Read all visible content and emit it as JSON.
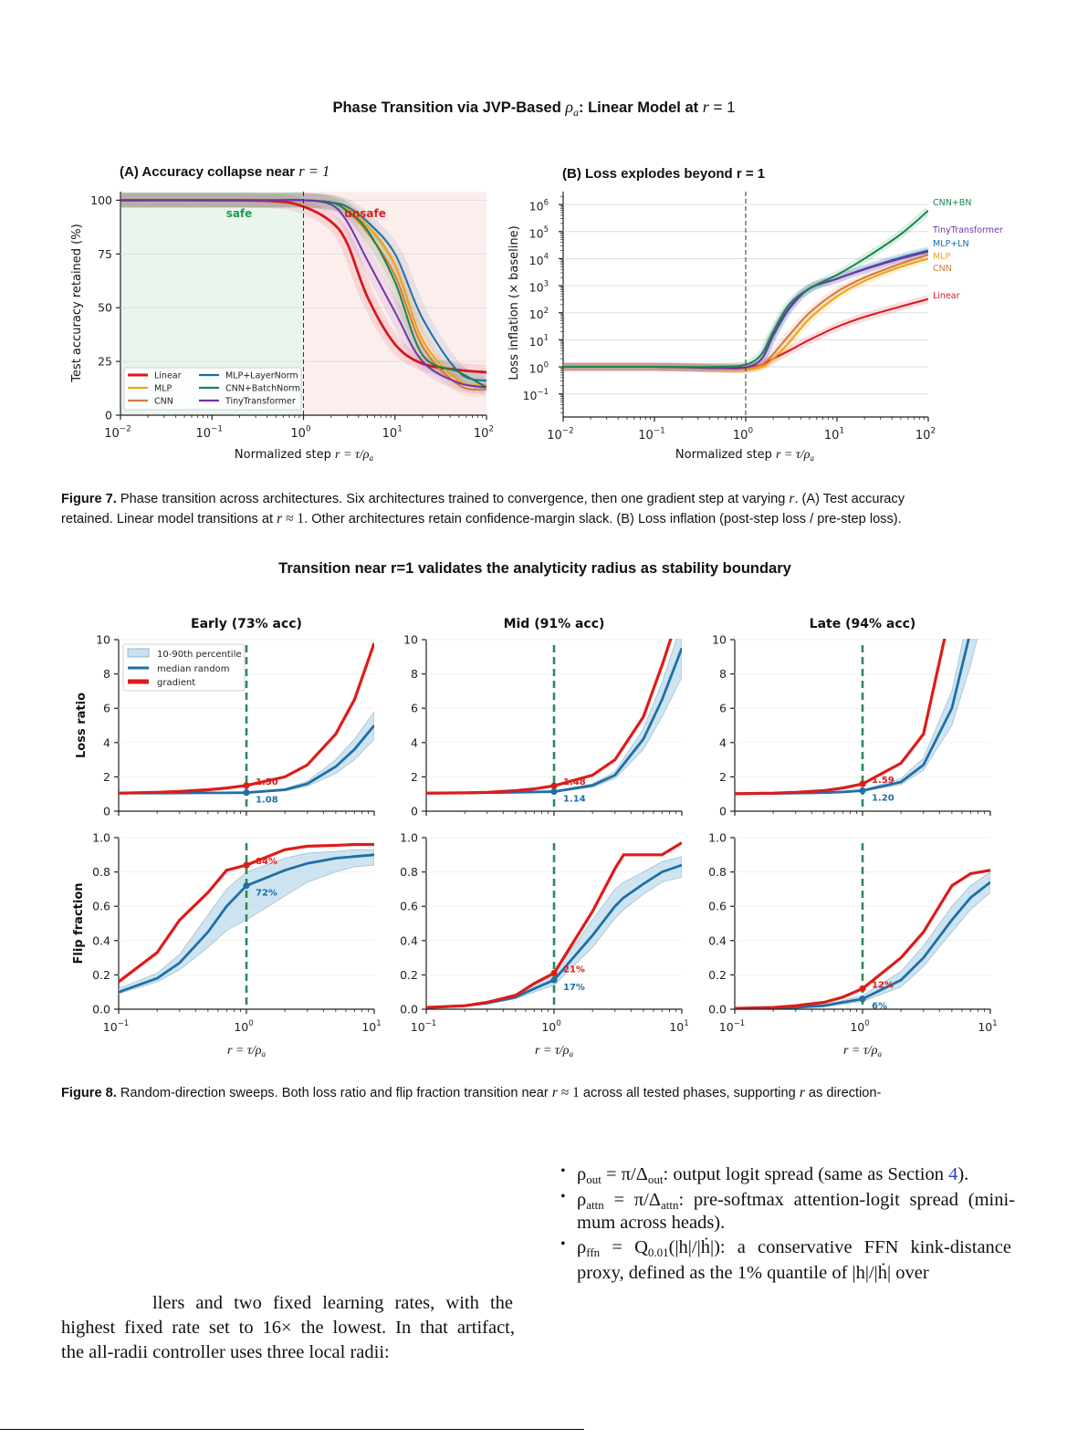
{
  "figure7": {
    "title": {
      "prefix": "Phase Transition via JVP-Based ",
      "rho": "ρ",
      "rho_sub": "a",
      "middle": ": Linear Model at ",
      "r": "r",
      "suffix": " = 1"
    },
    "caption": {
      "label": "Figure 7.",
      "line1": " Phase transition across architectures. Six architectures trained to convergence, then one gradient step at varying ",
      "line1_math": "r",
      "line1_end": ". (A) Test accuracy",
      "line2": "retained. Linear model transitions at ",
      "line2_math": "r",
      "line2_approx": " ≈ 1",
      "line2_end": ". Other architectures retain confidence-margin slack. (B) Loss inflation (post-step loss / pre-step loss)."
    }
  },
  "figure8": {
    "title": "Transition near r=1 validates the analyticity radius as stability boundary",
    "row_labels": {
      "loss": "Loss ratio",
      "flip": "Flip fraction"
    },
    "legend": {
      "band": "10-90th percentile",
      "median": "median random",
      "gradient": "gradient"
    },
    "colors": {
      "gradient": "#dd1c1a",
      "median": "#1f6fa5",
      "band": "#a6cde3",
      "boundary": "#2e8b57"
    },
    "caption": {
      "label": "Figure 8.",
      "text1": " Random-direction sweeps. Both loss ratio and flip fraction transition near ",
      "math1": "r",
      "approx": " ≈ 1",
      "text2": " across all tested phases, supporting ",
      "math2": "r",
      "text3": " as direction-"
    }
  },
  "body_text": {
    "bullets": [
      {
        "rho_sub": "out",
        "eq": " = π/Δ",
        "eq_sub": "out",
        "text": ": output logit spread (same as Section ",
        "link": "4",
        "end": ")."
      },
      {
        "rho_sub": "attn",
        "eq": " = π/Δ",
        "eq_sub": "attn",
        "text": ": pre-softmax attention-logit spread (mini-",
        "cont": "mum across heads)."
      },
      {
        "rho_sub": "ffn",
        "eq": " = Q",
        "eq_sub": "0.01",
        "arg": "(|h|/|ḣ|)",
        "text": ": a conservative FFN kink-distance",
        "cont": "proxy, defined as the 1% quantile of |h|/|ḣ| over"
      }
    ],
    "rho": "ρ",
    "bullet_char": "•",
    "left_lines": [
      "llers and two fixed learning rates, with the",
      "highest fixed rate set to 16× the lowest. In that artifact,",
      "the all-radii controller uses three local radii:"
    ]
  },
  "chart_data": [
    {
      "id": "A",
      "type": "line",
      "title": "(A) Accuracy collapse near ",
      "title_math": "r = 1",
      "xlabel": "Normalized step ",
      "xlabel_math": "r = τ/ρ",
      "xlabel_sub": "a",
      "ylabel": "Test accuracy retained (%)",
      "xscale": "log",
      "xlim": [
        0.01,
        100
      ],
      "ylim": [
        0,
        104
      ],
      "xticks": [
        0.01,
        0.1,
        1,
        10,
        100
      ],
      "xtick_labels": [
        {
          "base": "10",
          "exp": "−2"
        },
        {
          "base": "10",
          "exp": "−1"
        },
        {
          "base": "10",
          "exp": "0"
        },
        {
          "base": "10",
          "exp": "1"
        },
        {
          "base": "10",
          "exp": "2"
        }
      ],
      "yticks": [
        0,
        25,
        50,
        75,
        100
      ],
      "ytick_labels": [
        "0",
        "25",
        "50",
        "75",
        "100"
      ],
      "grid": true,
      "vline": 1,
      "regions": [
        {
          "label": "safe",
          "from": 0.01,
          "to": 1,
          "color": "#eaf5ee",
          "text_color": "#1e9b50"
        },
        {
          "label": "unsafe",
          "from": 1,
          "to": 100,
          "color": "#fdeeee",
          "text_color": "#d62020"
        }
      ],
      "legend_placement": "lower-left",
      "x": [
        0.01,
        0.1,
        0.5,
        1,
        2,
        3,
        5,
        10,
        20,
        50,
        100
      ],
      "series": [
        {
          "name": "Linear",
          "color": "#d9171c",
          "y": [
            100,
            100,
            99.5,
            97,
            90,
            80,
            55,
            33,
            24,
            21,
            20
          ]
        },
        {
          "name": "MLP",
          "color": "#f2a20c",
          "y": [
            100,
            100,
            100,
            100,
            99,
            96,
            88,
            70,
            35,
            16,
            14
          ]
        },
        {
          "name": "CNN",
          "color": "#d2793d",
          "y": [
            100,
            100,
            100,
            100,
            99,
            95,
            85,
            65,
            32,
            14,
            12
          ]
        },
        {
          "name": "MLP+LayerNorm",
          "color": "#1a6ea8",
          "y": [
            100,
            100,
            100,
            100,
            99,
            97,
            90,
            75,
            45,
            20,
            16
          ]
        },
        {
          "name": "CNN+BatchNorm",
          "color": "#15874a",
          "y": [
            100,
            100,
            100,
            100,
            99,
            95,
            86,
            62,
            28,
            20,
            13
          ]
        },
        {
          "name": "TinyTransformer",
          "color": "#7434a8",
          "y": [
            100,
            100,
            100,
            100,
            98,
            90,
            72,
            48,
            25,
            15,
            13
          ]
        }
      ]
    },
    {
      "id": "B",
      "type": "line",
      "title": "(B) Loss explodes beyond r = 1",
      "xlabel": "Normalized step ",
      "xlabel_math": "r = τ/ρ",
      "xlabel_sub": "a",
      "ylabel": "Loss inflation (× baseline)",
      "xscale": "log",
      "yscale": "log",
      "xlim": [
        0.01,
        100
      ],
      "ylim": [
        0.014,
        3000000
      ],
      "xticks": [
        0.01,
        0.1,
        1,
        10,
        100
      ],
      "xtick_labels": [
        {
          "base": "10",
          "exp": "−2"
        },
        {
          "base": "10",
          "exp": "−1"
        },
        {
          "base": "10",
          "exp": "0"
        },
        {
          "base": "10",
          "exp": "1"
        },
        {
          "base": "10",
          "exp": "2"
        }
      ],
      "yticks": [
        0.1,
        1,
        10,
        100,
        1000,
        10000,
        100000,
        1000000
      ],
      "ytick_labels": [
        {
          "base": "10",
          "exp": "−1"
        },
        {
          "base": "10",
          "exp": "0"
        },
        {
          "base": "10",
          "exp": "1"
        },
        {
          "base": "10",
          "exp": "2"
        },
        {
          "base": "10",
          "exp": "3"
        },
        {
          "base": "10",
          "exp": "4"
        },
        {
          "base": "10",
          "exp": "5"
        },
        {
          "base": "10",
          "exp": "6"
        }
      ],
      "grid": true,
      "vline": 1,
      "legend_placement": "right (end labels)",
      "x": [
        0.01,
        0.1,
        0.5,
        1,
        1.5,
        2,
        3,
        5,
        10,
        20,
        50,
        100
      ],
      "series": [
        {
          "name": "CNN+BN",
          "color": "#15874a",
          "y": [
            1,
            1,
            1,
            1.2,
            3,
            20,
            200,
            800,
            2500,
            10000,
            80000,
            600000
          ]
        },
        {
          "name": "TinyTransformer",
          "color": "#7434a8",
          "y": [
            1,
            1,
            0.9,
            0.95,
            2,
            15,
            150,
            800,
            1800,
            4000,
            10000,
            18000
          ]
        },
        {
          "name": "MLP+LN",
          "color": "#1a6ea8",
          "y": [
            1,
            1,
            0.9,
            0.95,
            2,
            14,
            140,
            780,
            1800,
            4200,
            11000,
            20000
          ]
        },
        {
          "name": "MLP",
          "color": "#f2a20c",
          "y": [
            1,
            1,
            0.85,
            0.8,
            1,
            2,
            8,
            60,
            400,
            1500,
            5000,
            10000
          ]
        },
        {
          "name": "CNN",
          "color": "#d2793d",
          "y": [
            1,
            1,
            0.85,
            0.85,
            1.2,
            3,
            15,
            100,
            600,
            2000,
            6500,
            14000
          ]
        },
        {
          "name": "Linear",
          "color": "#d9171c",
          "y": [
            1,
            1,
            0.95,
            0.95,
            1.2,
            2,
            4,
            10,
            30,
            70,
            170,
            320
          ]
        }
      ]
    },
    {
      "id": "early-loss",
      "type": "line",
      "panel": "Early (73% acc)",
      "metric": "loss",
      "xscale": "log",
      "xlim": [
        0.1,
        10
      ],
      "ylim": [
        0,
        10
      ],
      "yticks": [
        0,
        2,
        4,
        6,
        8,
        10
      ],
      "ytick_labels": [
        "0",
        "2",
        "4",
        "6",
        "8",
        "10"
      ],
      "vline": 1,
      "x": [
        0.1,
        0.2,
        0.3,
        0.5,
        0.7,
        1,
        2,
        3,
        5,
        7,
        10
      ],
      "gradient": [
        1.05,
        1.1,
        1.15,
        1.25,
        1.35,
        1.5,
        2.0,
        2.7,
        4.5,
        6.5,
        9.8
      ],
      "median": [
        1.05,
        1.05,
        1.06,
        1.07,
        1.07,
        1.08,
        1.25,
        1.6,
        2.6,
        3.6,
        5.0
      ],
      "p10": [
        1.04,
        1.04,
        1.05,
        1.05,
        1.06,
        1.06,
        1.18,
        1.45,
        2.2,
        3.0,
        4.2
      ],
      "p90": [
        1.06,
        1.06,
        1.07,
        1.09,
        1.09,
        1.11,
        1.32,
        1.75,
        3.0,
        4.2,
        5.8
      ],
      "annot_gradient": "1.50",
      "annot_median": "1.08",
      "legend_placement": "upper-left"
    },
    {
      "id": "mid-loss",
      "type": "line",
      "panel": "Mid (91% acc)",
      "metric": "loss",
      "xscale": "log",
      "xlim": [
        0.1,
        10
      ],
      "ylim": [
        0,
        10
      ],
      "yticks": [
        0,
        2,
        4,
        6,
        8,
        10
      ],
      "ytick_labels": [
        "0",
        "2",
        "4",
        "6",
        "8",
        "10"
      ],
      "vline": 1,
      "x": [
        0.1,
        0.2,
        0.3,
        0.5,
        0.7,
        1,
        2,
        3,
        5,
        7,
        10
      ],
      "gradient": [
        1.05,
        1.07,
        1.1,
        1.2,
        1.3,
        1.48,
        2.1,
        3.0,
        5.5,
        8.5,
        12
      ],
      "median": [
        1.05,
        1.06,
        1.08,
        1.1,
        1.12,
        1.14,
        1.5,
        2.1,
        4.2,
        6.5,
        9.5
      ],
      "p10": [
        1.04,
        1.05,
        1.07,
        1.09,
        1.1,
        1.12,
        1.4,
        1.9,
        3.6,
        5.5,
        7.8
      ],
      "p90": [
        1.06,
        1.07,
        1.09,
        1.12,
        1.14,
        1.17,
        1.6,
        2.3,
        4.8,
        7.5,
        11
      ],
      "annot_gradient": "1.48",
      "annot_median": "1.14"
    },
    {
      "id": "late-loss",
      "type": "line",
      "panel": "Late (94% acc)",
      "metric": "loss",
      "xscale": "log",
      "xlim": [
        0.1,
        10
      ],
      "ylim": [
        0,
        10
      ],
      "yticks": [
        0,
        2,
        4,
        6,
        8,
        10
      ],
      "ytick_labels": [
        "0",
        "2",
        "4",
        "6",
        "8",
        "10"
      ],
      "vline": 1,
      "x": [
        0.1,
        0.2,
        0.3,
        0.5,
        0.7,
        1,
        2,
        3,
        5,
        7,
        10
      ],
      "gradient": [
        1.02,
        1.05,
        1.1,
        1.2,
        1.35,
        1.59,
        2.8,
        4.5,
        12,
        20,
        30
      ],
      "median": [
        1.02,
        1.03,
        1.05,
        1.08,
        1.12,
        1.2,
        1.7,
        2.7,
        6,
        10.5,
        15
      ],
      "p10": [
        1.01,
        1.02,
        1.04,
        1.06,
        1.1,
        1.16,
        1.55,
        2.4,
        5,
        8.5,
        13
      ],
      "p90": [
        1.03,
        1.04,
        1.06,
        1.1,
        1.15,
        1.25,
        1.9,
        3.1,
        7,
        12,
        18
      ],
      "annot_gradient": "1.59",
      "annot_median": "1.20"
    },
    {
      "id": "early-flip",
      "type": "line",
      "panel": "Early (73% acc)",
      "metric": "flip",
      "xscale": "log",
      "xlim": [
        0.1,
        10
      ],
      "ylim": [
        0,
        1
      ],
      "yticks": [
        0,
        0.2,
        0.4,
        0.6,
        0.8,
        1.0
      ],
      "ytick_labels": [
        "0.0",
        "0.2",
        "0.4",
        "0.6",
        "0.8",
        "1.0"
      ],
      "xticks": [
        0.1,
        1,
        10
      ],
      "xtick_labels": [
        {
          "base": "10",
          "exp": "−1"
        },
        {
          "base": "10",
          "exp": "0"
        },
        {
          "base": "10",
          "exp": "1"
        }
      ],
      "xlabel_math": "r = τ/ρ",
      "xlabel_sub": "a",
      "vline": 1,
      "x": [
        0.1,
        0.2,
        0.3,
        0.5,
        0.7,
        1,
        2,
        3,
        5,
        7,
        10
      ],
      "gradient": [
        0.16,
        0.33,
        0.52,
        0.68,
        0.81,
        0.84,
        0.93,
        0.95,
        0.955,
        0.96,
        0.96
      ],
      "median": [
        0.1,
        0.18,
        0.27,
        0.45,
        0.6,
        0.72,
        0.81,
        0.85,
        0.88,
        0.89,
        0.9
      ],
      "p10": [
        0.09,
        0.16,
        0.23,
        0.36,
        0.46,
        0.52,
        0.66,
        0.74,
        0.8,
        0.83,
        0.84
      ],
      "p90": [
        0.12,
        0.21,
        0.32,
        0.55,
        0.7,
        0.8,
        0.88,
        0.91,
        0.92,
        0.93,
        0.93
      ],
      "annot_gradient": "84%",
      "annot_median": "72%"
    },
    {
      "id": "mid-flip",
      "type": "line",
      "panel": "Mid (91% acc)",
      "metric": "flip",
      "xscale": "log",
      "xlim": [
        0.1,
        10
      ],
      "ylim": [
        0,
        1
      ],
      "yticks": [
        0,
        0.2,
        0.4,
        0.6,
        0.8,
        1.0
      ],
      "ytick_labels": [
        "0.0",
        "0.2",
        "0.4",
        "0.6",
        "0.8",
        "1.0"
      ],
      "xticks": [
        0.1,
        1,
        10
      ],
      "xtick_labels": [
        {
          "base": "10",
          "exp": "−1"
        },
        {
          "base": "10",
          "exp": "0"
        },
        {
          "base": "10",
          "exp": "1"
        }
      ],
      "xlabel_math": "r = τ/ρ",
      "xlabel_sub": "a",
      "vline": 1,
      "x": [
        0.1,
        0.2,
        0.3,
        0.5,
        0.7,
        1,
        2,
        3,
        3.5,
        5,
        7,
        10
      ],
      "gradient": [
        0.01,
        0.02,
        0.04,
        0.08,
        0.15,
        0.21,
        0.57,
        0.82,
        0.9,
        0.9,
        0.9,
        0.97
      ],
      "median": [
        0.01,
        0.02,
        0.035,
        0.07,
        0.12,
        0.17,
        0.43,
        0.6,
        0.65,
        0.73,
        0.8,
        0.84
      ],
      "p10": [
        0.01,
        0.015,
        0.03,
        0.06,
        0.1,
        0.14,
        0.36,
        0.53,
        0.58,
        0.67,
        0.74,
        0.77
      ],
      "p90": [
        0.015,
        0.025,
        0.045,
        0.09,
        0.15,
        0.21,
        0.52,
        0.7,
        0.74,
        0.8,
        0.86,
        0.89
      ],
      "annot_gradient": "21%",
      "annot_median": "17%"
    },
    {
      "id": "late-flip",
      "type": "line",
      "panel": "Late (94% acc)",
      "metric": "flip",
      "xscale": "log",
      "xlim": [
        0.1,
        10
      ],
      "ylim": [
        0,
        1
      ],
      "yticks": [
        0,
        0.2,
        0.4,
        0.6,
        0.8,
        1.0
      ],
      "ytick_labels": [
        "0.0",
        "0.2",
        "0.4",
        "0.6",
        "0.8",
        "1.0"
      ],
      "xticks": [
        0.1,
        1,
        10
      ],
      "xtick_labels": [
        {
          "base": "10",
          "exp": "−1"
        },
        {
          "base": "10",
          "exp": "0"
        },
        {
          "base": "10",
          "exp": "1"
        }
      ],
      "xlabel_math": "r = τ/ρ",
      "xlabel_sub": "a",
      "vline": 1,
      "x": [
        0.1,
        0.2,
        0.3,
        0.5,
        0.7,
        1,
        2,
        3,
        5,
        7,
        10
      ],
      "gradient": [
        0.005,
        0.01,
        0.02,
        0.04,
        0.07,
        0.12,
        0.3,
        0.45,
        0.72,
        0.79,
        0.81
      ],
      "median": [
        0.003,
        0.006,
        0.01,
        0.02,
        0.04,
        0.06,
        0.17,
        0.3,
        0.52,
        0.65,
        0.74
      ],
      "p10": [
        0.002,
        0.004,
        0.008,
        0.015,
        0.03,
        0.045,
        0.13,
        0.25,
        0.45,
        0.58,
        0.68
      ],
      "p90": [
        0.005,
        0.01,
        0.015,
        0.03,
        0.05,
        0.08,
        0.22,
        0.37,
        0.6,
        0.72,
        0.8
      ],
      "annot_gradient": "12%",
      "annot_median": "6%"
    }
  ]
}
